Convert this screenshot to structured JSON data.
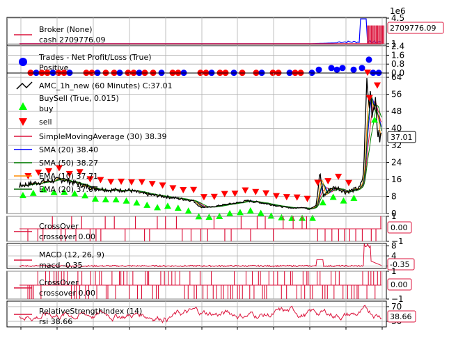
{
  "chart_data": [
    {
      "type": "line",
      "panel": "broker",
      "scale_label": "1e6",
      "legend": [
        "Broker (None)",
        "cash 2709776.09"
      ],
      "series": [
        {
          "name": "cash",
          "color": "#dc143c"
        }
      ],
      "yticks": [
        1.0,
        4.5
      ],
      "ylim": [
        0.8,
        4.6
      ],
      "last_value": "2709776.09",
      "grid": true
    },
    {
      "type": "scatter",
      "panel": "trades",
      "legend": [
        "Trades - Net Profit/Loss (True)",
        "Positive"
      ],
      "series": [
        {
          "name": "Positive",
          "color": "#0000ff"
        },
        {
          "name": "Negative",
          "color": "#ff0000"
        }
      ],
      "yticks": [
        "0.0",
        "0.8",
        "1.6",
        "2.4"
      ],
      "ylim": [
        0,
        2.5
      ],
      "grid": true
    },
    {
      "type": "line",
      "panel": "price",
      "legend": [
        "AMC_1h_new (60 Minutes) C:37.01",
        "BuySell (True, 0.015)",
        "buy",
        "sell",
        "SimpleMovingAverage (30) 38.39",
        "SMA (20) 38.40",
        "SMA (50) 38.27",
        "EMA (10) 37.71",
        "EMA (20) 37.07"
      ],
      "series": [
        {
          "name": "AMC_1h_new",
          "color": "#000000"
        },
        {
          "name": "SimpleMovingAverage (30)",
          "color": "#dc143c"
        },
        {
          "name": "SMA (20)",
          "color": "#0000ff"
        },
        {
          "name": "SMA (50)",
          "color": "#008000"
        },
        {
          "name": "EMA (10)",
          "color": "#ff8c00"
        },
        {
          "name": "EMA (20)",
          "color": "#006400"
        }
      ],
      "anchors": [
        [
          0,
          13
        ],
        [
          0.03,
          14
        ],
        [
          0.07,
          15
        ],
        [
          0.12,
          16
        ],
        [
          0.16,
          14
        ],
        [
          0.2,
          12
        ],
        [
          0.25,
          11
        ],
        [
          0.3,
          11
        ],
        [
          0.35,
          9
        ],
        [
          0.4,
          8
        ],
        [
          0.44,
          7
        ],
        [
          0.48,
          6
        ],
        [
          0.5,
          3
        ],
        [
          0.53,
          3
        ],
        [
          0.56,
          4
        ],
        [
          0.6,
          5
        ],
        [
          0.63,
          6
        ],
        [
          0.67,
          5
        ],
        [
          0.7,
          4
        ],
        [
          0.73,
          3
        ],
        [
          0.76,
          2.5
        ],
        [
          0.78,
          3
        ],
        [
          0.8,
          2
        ],
        [
          0.82,
          4
        ],
        [
          0.83,
          19
        ],
        [
          0.84,
          8
        ],
        [
          0.86,
          12
        ],
        [
          0.88,
          12
        ],
        [
          0.9,
          10
        ],
        [
          0.92,
          11
        ],
        [
          0.94,
          12
        ],
        [
          0.95,
          18
        ],
        [
          0.955,
          40
        ],
        [
          0.96,
          65
        ],
        [
          0.965,
          50
        ],
        [
          0.97,
          60
        ],
        [
          0.975,
          45
        ],
        [
          0.98,
          55
        ],
        [
          0.985,
          48
        ],
        [
          0.99,
          38
        ],
        [
          0.995,
          35
        ],
        [
          1.0,
          37
        ]
      ],
      "yticks": [
        0,
        8,
        16,
        24,
        32,
        40,
        48,
        56,
        64
      ],
      "ylim": [
        0,
        66
      ],
      "last_value": "37.01",
      "grid": true
    },
    {
      "type": "line",
      "panel": "crossover1",
      "legend": [
        "CrossOver",
        "crossover 0.00"
      ],
      "series": [
        {
          "name": "crossover",
          "color": "#dc143c"
        }
      ],
      "yticks": [
        "−1",
        "1"
      ],
      "ylim": [
        -1,
        1
      ],
      "last_value": "0.00",
      "grid": true
    },
    {
      "type": "line",
      "panel": "macd",
      "legend": [
        "MACD (12, 26, 9)",
        "macd -0.35"
      ],
      "series": [
        {
          "name": "macd",
          "color": "#dc143c"
        }
      ],
      "yticks": [
        0,
        4,
        8
      ],
      "ylim": [
        -1,
        9
      ],
      "last_value": "-0.35",
      "grid": true
    },
    {
      "type": "line",
      "panel": "crossover2",
      "legend": [
        "CrossOver",
        "crossover 0.00"
      ],
      "series": [
        {
          "name": "crossover",
          "color": "#dc143c"
        }
      ],
      "yticks": [
        "−1",
        "1"
      ],
      "ylim": [
        -1,
        1
      ],
      "last_value": "0.00",
      "grid": true
    },
    {
      "type": "line",
      "panel": "rsi",
      "legend": [
        "RelativeStrengthIndex (14)",
        "rsi 38.66"
      ],
      "series": [
        {
          "name": "rsi",
          "color": "#dc143c"
        }
      ],
      "yticks": [
        30,
        70
      ],
      "ylim": [
        15,
        85
      ],
      "last_value": "38.66",
      "grid": true
    }
  ]
}
